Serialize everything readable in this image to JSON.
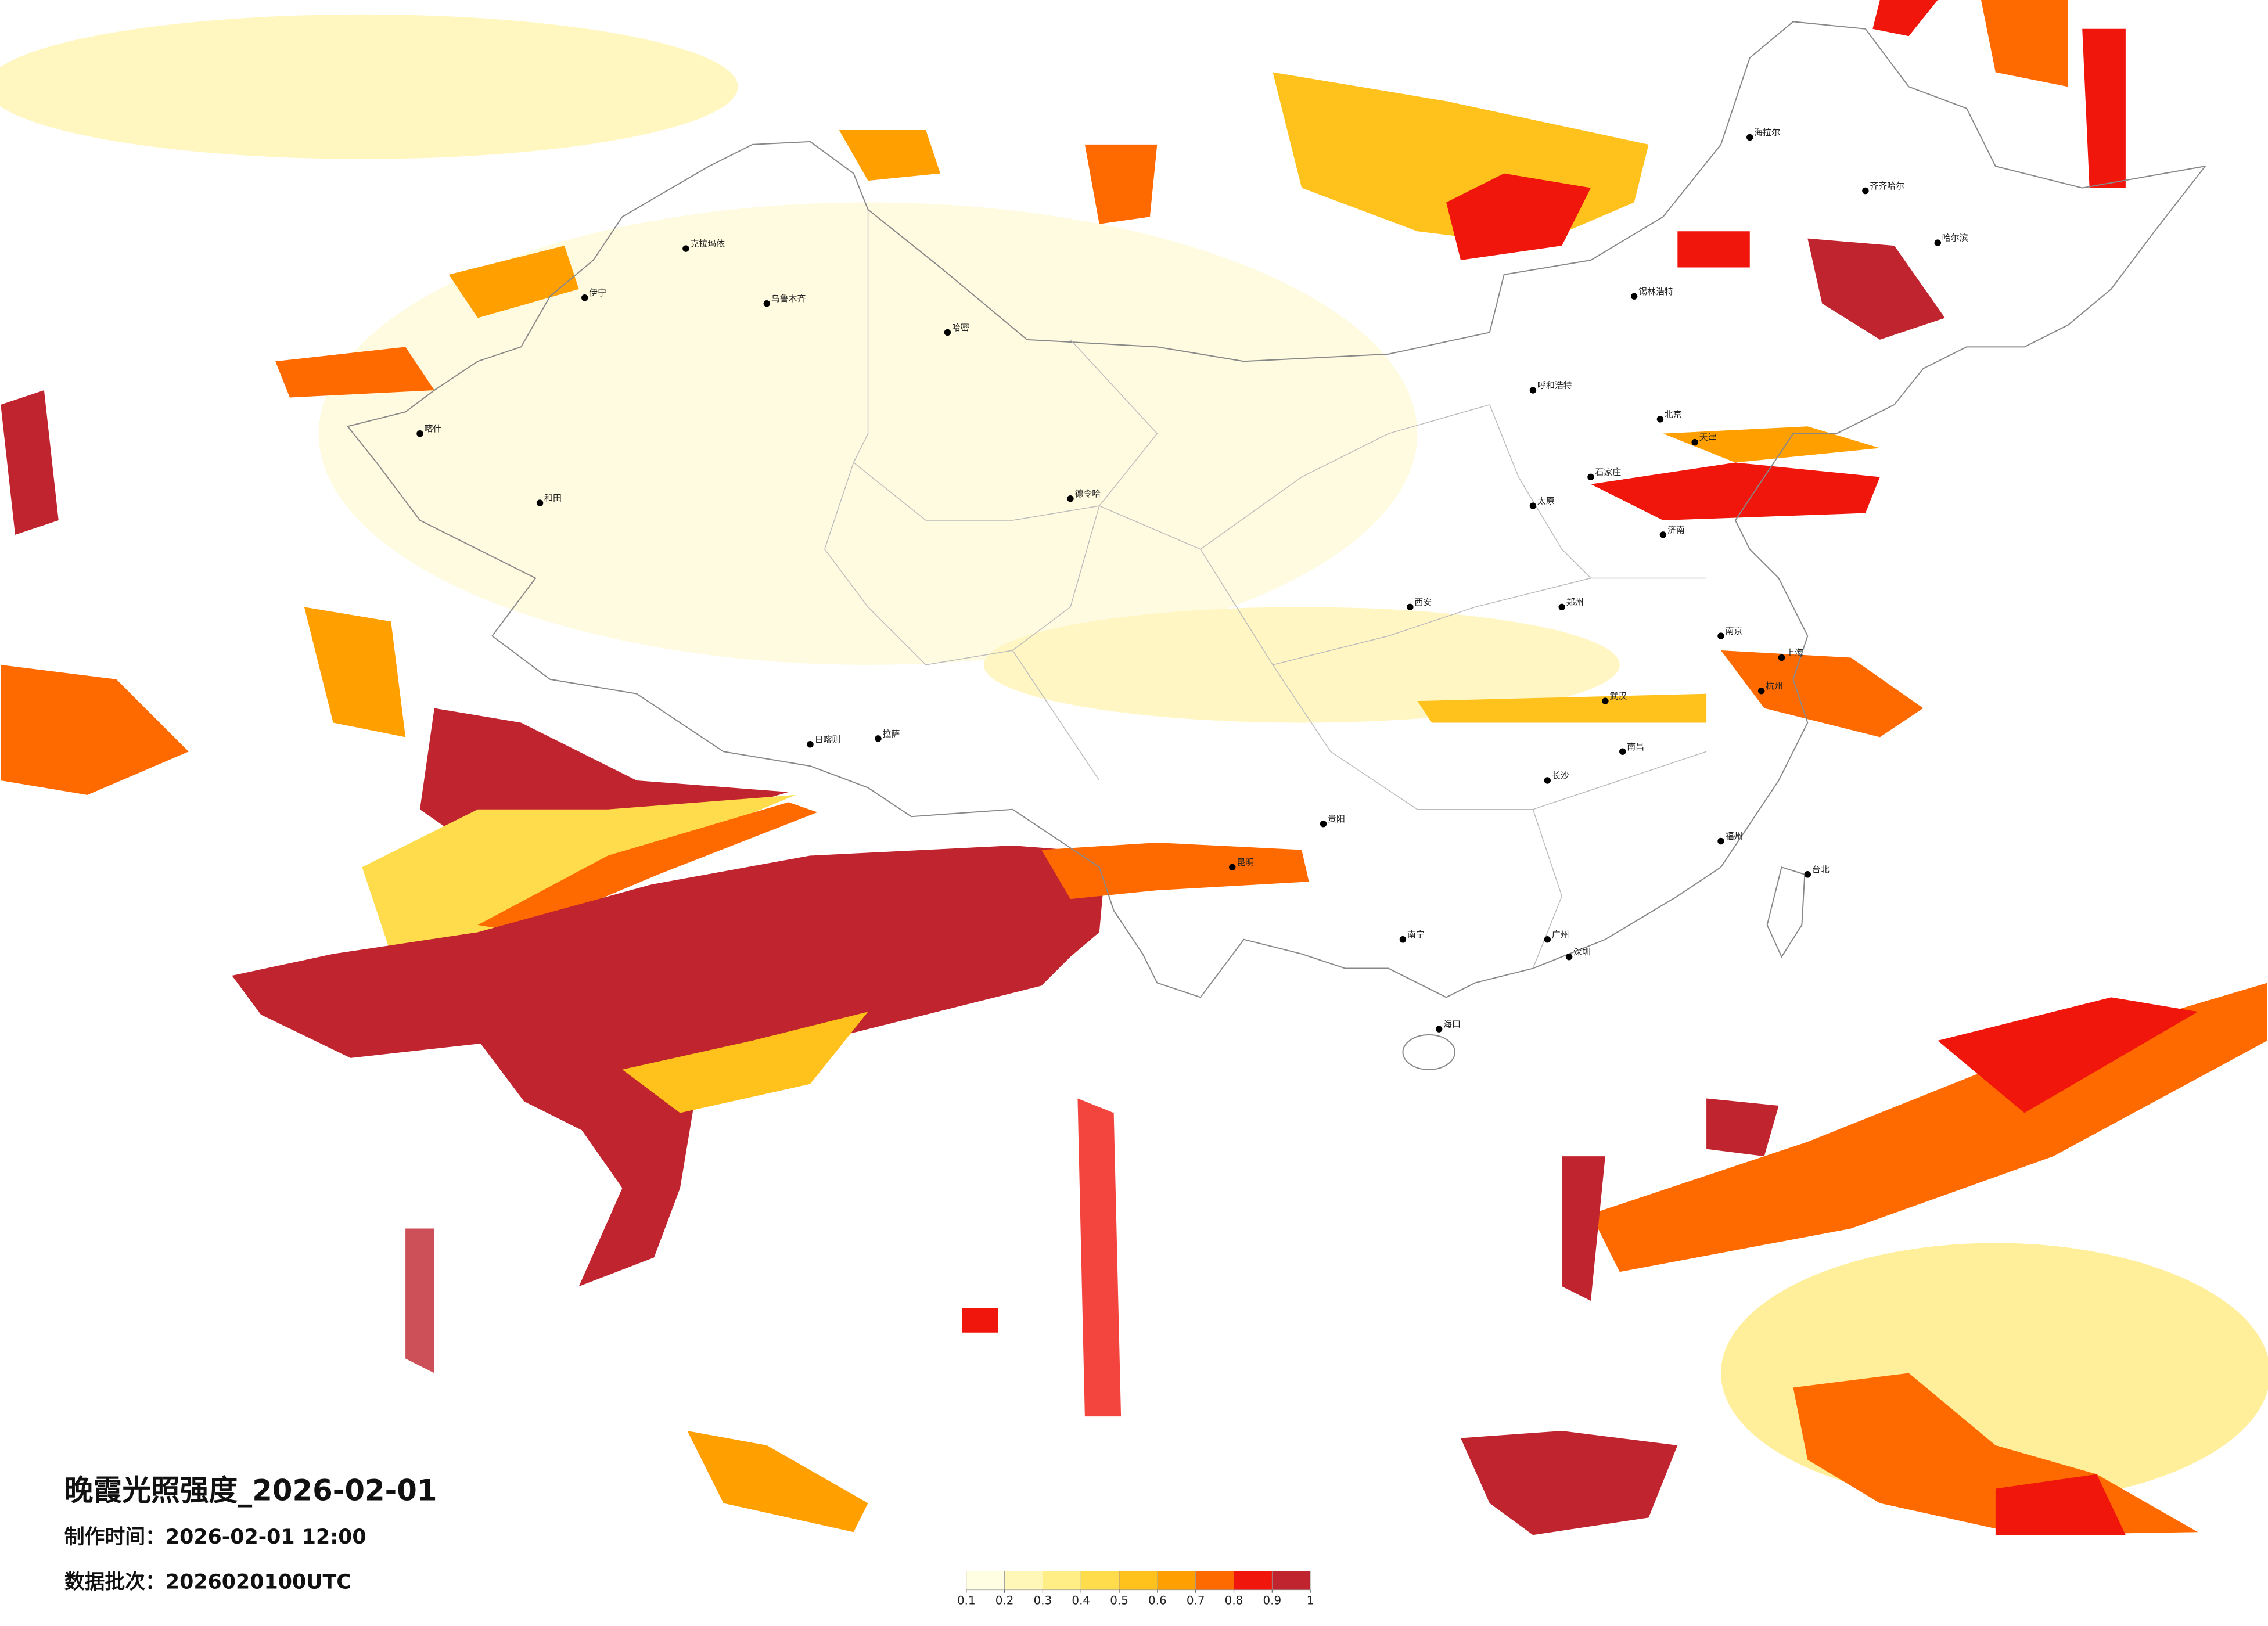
{
  "header": {
    "title": "晚霞光照强度_2026-02-01",
    "production_time": "制作时间：2026-02-01 12:00",
    "batch": "数据批次：2026020100UTC"
  },
  "legend": {
    "ticks": [
      0.1,
      0.2,
      0.3,
      0.4,
      0.5,
      0.6,
      0.7,
      0.8,
      0.9,
      1
    ],
    "colors": [
      "#fffde2",
      "#fff7b8",
      "#ffee86",
      "#ffdc4c",
      "#ffc21c",
      "#ff9f00",
      "#ff6a00",
      "#f0160c",
      "#c0242e"
    ]
  },
  "cities": [
    "克拉玛依",
    "伊宁",
    "乌鲁木齐",
    "哈密",
    "喀什",
    "和田",
    "德令哈",
    "拉萨",
    "日喀则",
    "海拉尔",
    "齐齐哈尔",
    "哈尔滨",
    "锡林浩特",
    "呼和浩特",
    "北京",
    "天津",
    "太原",
    "石家庄",
    "济南",
    "郑州",
    "西安",
    "南京",
    "上海",
    "杭州",
    "武汉",
    "长沙",
    "南昌",
    "福州",
    "台北",
    "贵阳",
    "昆明",
    "南宁",
    "广州",
    "深圳",
    "海口"
  ]
}
